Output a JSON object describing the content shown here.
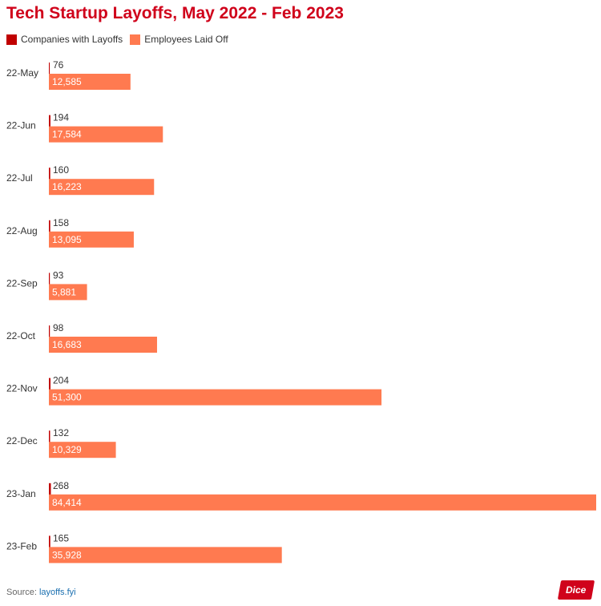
{
  "chart_data": {
    "type": "bar",
    "title": "Tech Startup Layoffs, May 2022 - Feb 2023",
    "categories": [
      "22-May",
      "22-Jun",
      "22-Jul",
      "22-Aug",
      "22-Sep",
      "22-Oct",
      "22-Nov",
      "22-Dec",
      "23-Jan",
      "23-Feb"
    ],
    "series": [
      {
        "name": "Companies with Layoffs",
        "color": "#c00000",
        "values": [
          76,
          194,
          160,
          158,
          93,
          98,
          204,
          132,
          268,
          165
        ],
        "labels": [
          "76",
          "194",
          "160",
          "158",
          "93",
          "98",
          "204",
          "132",
          "268",
          "165"
        ]
      },
      {
        "name": "Employees Laid Off",
        "color": "#ff7a50",
        "values": [
          12585,
          17584,
          16223,
          13095,
          5881,
          16683,
          51300,
          10329,
          84414,
          35928
        ],
        "labels": [
          "12,585",
          "17,584",
          "16,223",
          "13,095",
          "5,881",
          "16,683",
          "51,300",
          "10,329",
          "84,414",
          "35,928"
        ]
      }
    ],
    "orientation": "horizontal",
    "xlim": [
      0,
      84414
    ],
    "grid": false,
    "legend_position": "top-left"
  },
  "source": {
    "prefix": "Source: ",
    "link": "layoffs.fyi"
  },
  "logo_text": "Dice"
}
